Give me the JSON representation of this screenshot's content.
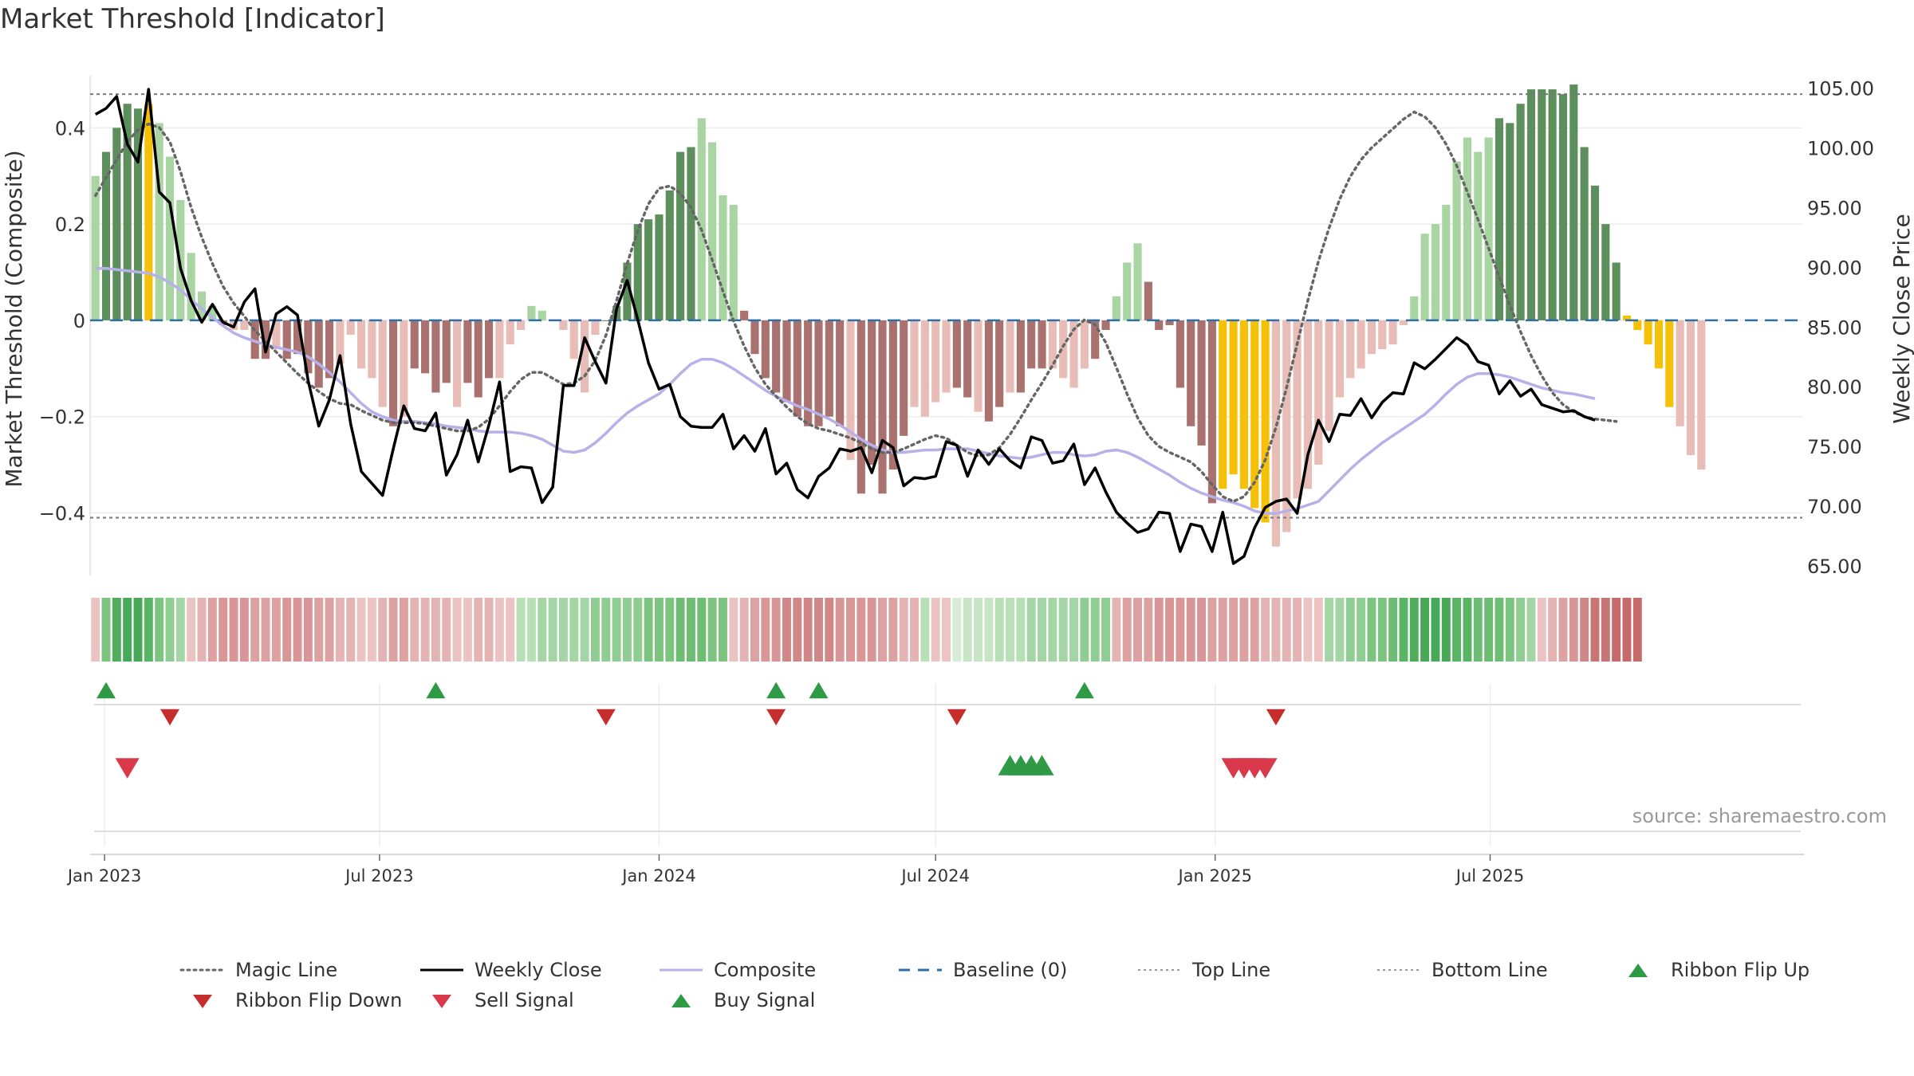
{
  "title": "Market Threshold [Indicator]",
  "source": "source: sharemaestro.com",
  "colors": {
    "dark_green": "#5c8f5c",
    "light_green": "#a8d5a2",
    "dark_red": "#a9726f",
    "light_red": "#e8bdb8",
    "gold": "#f5c108",
    "close": "#000000",
    "composite": "#b8b0e8",
    "magic": "#666666",
    "baseline": "#2e6fa8",
    "buy": "#2e9a45",
    "sell": "#d9394a",
    "flip_down": "#c62e2e"
  },
  "chart_data": {
    "type": "bar",
    "left_axis": {
      "label": "Market Threshold (Composite)",
      "ylim": [
        -0.54,
        0.5
      ],
      "ticks": [
        0.4,
        0.2,
        0,
        -0.2,
        -0.4
      ],
      "tick_labels": [
        "0.4",
        "0.2",
        "0",
        "−0.2",
        "−0.4"
      ]
    },
    "right_axis": {
      "label": "Weekly Close Price",
      "ylim": [
        63.8,
        105.7
      ],
      "ticks": [
        105,
        100,
        95,
        90,
        85,
        80,
        75,
        70,
        65
      ],
      "tick_labels": [
        "105.00",
        "100.00",
        "95.00",
        "90.00",
        "85.00",
        "80.00",
        "75.00",
        "70.00",
        "65.00"
      ]
    },
    "x_axis": {
      "start": "2022-12-26",
      "weeks": 140,
      "tick_labels": [
        "Jan 2023",
        "Jul 2023",
        "Jan 2024",
        "Jul 2024",
        "Jan 2025",
        "Jul 2025"
      ],
      "tick_dates": [
        "2023-01-01",
        "2023-07-01",
        "2024-01-01",
        "2024-07-01",
        "2025-01-01",
        "2025-07-01"
      ]
    },
    "top_line": 0.47,
    "bottom_line": -0.41,
    "baseline": 0,
    "composite_bars": [
      0.3,
      0.35,
      0.4,
      0.45,
      0.44,
      0.45,
      0.41,
      0.34,
      0.25,
      0.14,
      0.06,
      0.03,
      -0.01,
      -0.02,
      -0.02,
      -0.08,
      -0.08,
      -0.06,
      -0.08,
      -0.07,
      -0.11,
      -0.14,
      -0.12,
      -0.09,
      -0.03,
      -0.1,
      -0.12,
      -0.18,
      -0.22,
      -0.2,
      -0.1,
      -0.11,
      -0.15,
      -0.13,
      -0.18,
      -0.13,
      -0.16,
      -0.12,
      -0.12,
      -0.05,
      -0.02,
      0.03,
      0.02,
      0,
      -0.02,
      -0.08,
      -0.15,
      -0.03,
      0,
      0.03,
      0.12,
      0.2,
      0.21,
      0.22,
      0.27,
      0.35,
      0.36,
      0.42,
      0.37,
      0.26,
      0.24,
      0.02,
      -0.07,
      -0.12,
      -0.15,
      -0.17,
      -0.2,
      -0.22,
      -0.22,
      -0.2,
      -0.22,
      -0.29,
      -0.36,
      -0.3,
      -0.36,
      -0.31,
      -0.24,
      -0.18,
      -0.2,
      -0.17,
      -0.15,
      -0.14,
      -0.16,
      -0.19,
      -0.21,
      -0.18,
      -0.15,
      -0.15,
      -0.1,
      -0.1,
      -0.1,
      -0.12,
      -0.14,
      -0.1,
      -0.08,
      -0.02,
      0.05,
      0.12,
      0.16,
      0.08,
      -0.02,
      -0.01,
      -0.14,
      -0.22,
      -0.26,
      -0.38,
      -0.35,
      -0.32,
      -0.35,
      -0.39,
      -0.42,
      -0.47,
      -0.44,
      -0.37,
      -0.35,
      -0.3,
      -0.23,
      -0.16,
      -0.12,
      -0.1,
      -0.07,
      -0.06,
      -0.05,
      -0.01,
      0.05,
      0.18,
      0.2,
      0.24,
      0.33,
      0.38,
      0.35,
      0.38,
      0.42,
      0.41,
      0.45,
      0.48,
      0.48,
      0.48,
      0.47,
      0.49,
      0.36,
      0.28,
      0.2,
      0.12,
      0.01,
      -0.02,
      -0.05,
      -0.1,
      -0.18,
      -0.22,
      -0.28,
      -0.31
    ],
    "bar_types": "LDDDDGLLLLLLRLLRRLRRRRRLLLLLRLRRRRLRRRLLLLLRLLLLDDDDDDDDDLLLLRRRRRRRRRRLRRRRRLLLLRRLRRLRRRLLLLDDLLLRDDDDDDGGGGGLLLLLLLLLLLLLLLLLLLLLDDDDDDDDDDDDGGGGGLLLLLRRRRRRR",
    "weekly_close": [
      102.8,
      103.3,
      104.3,
      100.3,
      98.8,
      104.9,
      96.3,
      95.4,
      89.9,
      87.2,
      85.4,
      86.9,
      85.4,
      85,
      87.1,
      88.2,
      82.9,
      86.1,
      86.7,
      86,
      80.5,
      76.7,
      78.9,
      82.6,
      76.9,
      72.9,
      71.9,
      70.9,
      74.8,
      78.4,
      76.5,
      76.3,
      77.8,
      72.6,
      74.3,
      77.2,
      73.7,
      76.8,
      80.4,
      72.9,
      73.3,
      73.2,
      70.3,
      71.6,
      80.1,
      80.1,
      84.1,
      82.1,
      80.3,
      86.5,
      88.9,
      85.6,
      82,
      79.8,
      80.2,
      77.5,
      76.7,
      76.6,
      76.6,
      77.7,
      74.8,
      75.9,
      74.6,
      76.5,
      72.7,
      73.6,
      71.4,
      70.7,
      72.5,
      73.2,
      74.8,
      74.6,
      74.9,
      72.8,
      75.5,
      74.9,
      71.7,
      72.4,
      72.3,
      72.5,
      75.4,
      75.1,
      72.5,
      74.7,
      73.5,
      74.8,
      73.8,
      73.2,
      75.8,
      75.5,
      73.6,
      73.8,
      75.2,
      71.8,
      73.2,
      71.2,
      69.5,
      68.6,
      67.8,
      68.1,
      69.5,
      69.4,
      66.2,
      68.5,
      68.3,
      66.2,
      69.5,
      65.2,
      65.8,
      68.2,
      69.9,
      70.4,
      70.6,
      69.4,
      74.3,
      77.2,
      75.4,
      77.7,
      77.6,
      79,
      77.4,
      78.7,
      79.5,
      79.4,
      82,
      81.5,
      82.3,
      83.2,
      84.1,
      83.5,
      82.1,
      81.8,
      79.4,
      80.5,
      79.2,
      79.8,
      78.5,
      78.2,
      77.9,
      78,
      77.5,
      77.2
    ],
    "magic_line": [
      96,
      97.5,
      99,
      100.5,
      101.5,
      102,
      101.7,
      100.5,
      98,
      95,
      92.5,
      90.3,
      88.4,
      87,
      85.9,
      84.7,
      83.8,
      82.9,
      82,
      81.1,
      80.3,
      79.6,
      79,
      78.6,
      78.5,
      78,
      77.6,
      77.2,
      77,
      77,
      77,
      76.9,
      76.7,
      76.5,
      76.3,
      76.3,
      76.6,
      77.3,
      78.4,
      79.6,
      80.6,
      81.2,
      81.2,
      80.7,
      80.2,
      80.3,
      80.9,
      82.2,
      84.3,
      87.2,
      90.3,
      93.1,
      95.3,
      96.6,
      96.8,
      96.2,
      95,
      93.1,
      90.6,
      88,
      85.5,
      83.4,
      81.6,
      80.2,
      79.2,
      78.3,
      77.5,
      76.9,
      76.5,
      76.3,
      76,
      75.7,
      75.3,
      74.8,
      74.5,
      74.5,
      74.8,
      75.2,
      75.6,
      75.9,
      75.7,
      75.1,
      74.5,
      74.2,
      74.3,
      74.9,
      76,
      77.4,
      78.9,
      80.3,
      81.8,
      83.4,
      84.8,
      85.6,
      85.2,
      83.7,
      81.6,
      79.4,
      77.4,
      75.9,
      75,
      74.5,
      74.1,
      73.7,
      72.9,
      71.8,
      70.8,
      70.4,
      70.8,
      72,
      73.9,
      76.6,
      79.9,
      83.6,
      87.2,
      90.5,
      93.3,
      95.7,
      97.6,
      99,
      100,
      100.8,
      101.6,
      102.4,
      103,
      102.6,
      101.7,
      100.3,
      98.5,
      96.3,
      94,
      91.6,
      89.2,
      86.8,
      84.6,
      82.6,
      80.9,
      79.5,
      78.5,
      77.9,
      77.5,
      77.3,
      77.2,
      77.1
    ],
    "composite_line": [
      89.9,
      89.9,
      89.8,
      89.7,
      89.6,
      89.5,
      89.2,
      88.7,
      88.1,
      87.3,
      86.5,
      85.8,
      85.1,
      84.5,
      84.1,
      83.8,
      83.5,
      83.3,
      83.1,
      82.9,
      82.5,
      81.9,
      81.2,
      80.4,
      79.5,
      78.6,
      77.9,
      77.5,
      77.2,
      77.1,
      77.1,
      77,
      76.9,
      76.7,
      76.6,
      76.5,
      76.3,
      76.2,
      76.2,
      76.2,
      76.1,
      75.9,
      75.6,
      75.1,
      74.6,
      74.5,
      74.7,
      75.3,
      76.1,
      77,
      77.8,
      78.4,
      78.9,
      79.4,
      80.2,
      81.1,
      81.9,
      82.3,
      82.3,
      82,
      81.5,
      80.9,
      80.3,
      79.7,
      79.2,
      78.8,
      78.4,
      78.1,
      77.7,
      77.3,
      76.8,
      76.2,
      75.6,
      75.1,
      74.7,
      74.5,
      74.5,
      74.6,
      74.7,
      74.7,
      74.8,
      74.8,
      74.8,
      74.6,
      74.4,
      74.2,
      74.1,
      74,
      74.1,
      74.3,
      74.5,
      74.5,
      74.3,
      74.2,
      74.3,
      74.6,
      74.7,
      74.5,
      74.1,
      73.6,
      73.1,
      72.6,
      72,
      71.5,
      71.1,
      70.8,
      70.5,
      70.3,
      70,
      69.6,
      69.4,
      69.4,
      69.6,
      69.8,
      70.1,
      70.4,
      71.3,
      72.2,
      73.1,
      73.9,
      74.6,
      75.3,
      75.9,
      76.5,
      77.1,
      77.7,
      78.5,
      79.4,
      80.2,
      80.8,
      81.1,
      81.1,
      81,
      80.8,
      80.5,
      80.2,
      79.9,
      79.7,
      79.5,
      79.4,
      79.2,
      79
    ],
    "ribbon": [
      "#ecc3c3",
      "#7cc47f",
      "#4fad5c",
      "#47a857",
      "#47a857",
      "#59b466",
      "#7cc47f",
      "#8fcd92",
      "#a3d6a4",
      "#ecc3c3",
      "#e4b3b3",
      "#dca1a1",
      "#d99696",
      "#d99696",
      "#d99696",
      "#dca1a1",
      "#dca1a1",
      "#dca1a1",
      "#d99696",
      "#d99696",
      "#d99696",
      "#dca1a1",
      "#dca1a1",
      "#e4b3b3",
      "#e4b3b3",
      "#ecc3c3",
      "#ecc3c3",
      "#e4b3b3",
      "#dca1a1",
      "#dca1a1",
      "#e4b3b3",
      "#e4b3b3",
      "#e4b3b3",
      "#e4b3b3",
      "#ecc3c3",
      "#ecc3c3",
      "#e4b3b3",
      "#e4b3b3",
      "#ecc3c3",
      "#ecc3c3",
      "#b8e0b7",
      "#b8e0b7",
      "#a3d6a4",
      "#a3d6a4",
      "#a3d6a4",
      "#a3d6a4",
      "#a3d6a4",
      "#8fcd92",
      "#8fcd92",
      "#8fcd92",
      "#8fcd92",
      "#8fcd92",
      "#7cc47f",
      "#7cc47f",
      "#7cc47f",
      "#6fbd74",
      "#6fbd74",
      "#6fbd74",
      "#7cc47f",
      "#7cc47f",
      "#ecc3c3",
      "#e4b3b3",
      "#dca1a1",
      "#d99696",
      "#d99696",
      "#d08787",
      "#d08787",
      "#d08787",
      "#d08787",
      "#d08787",
      "#d99696",
      "#d99696",
      "#d99696",
      "#d99696",
      "#dca1a1",
      "#dca1a1",
      "#e4b3b3",
      "#e4b3b3",
      "#b8e0b7",
      "#ecc3c3",
      "#ecc3c3",
      "#d6ecd4",
      "#c8e6c6",
      "#c8e6c6",
      "#c8e6c6",
      "#b8e0b7",
      "#b8e0b7",
      "#b8e0b7",
      "#a3d6a4",
      "#a3d6a4",
      "#a3d6a4",
      "#a3d6a4",
      "#a3d6a4",
      "#8fcd92",
      "#8fcd92",
      "#8fcd92",
      "#e4b3b3",
      "#dca1a1",
      "#dca1a1",
      "#dca1a1",
      "#d99696",
      "#d99696",
      "#d99696",
      "#d99696",
      "#d99696",
      "#dca1a1",
      "#dca1a1",
      "#dca1a1",
      "#dca1a1",
      "#dca1a1",
      "#e4b3b3",
      "#e4b3b3",
      "#e4b3b3",
      "#e4b3b3",
      "#ecc3c3",
      "#ecc3c3",
      "#a3d6a4",
      "#a3d6a4",
      "#8fcd92",
      "#8fcd92",
      "#7cc47f",
      "#7cc47f",
      "#6fbd74",
      "#59b466",
      "#4fad5c",
      "#47a857",
      "#47a857",
      "#47a857",
      "#59b466",
      "#59b466",
      "#6fbd74",
      "#6fbd74",
      "#6fbd74",
      "#7cc47f",
      "#8fcd92",
      "#a3d6a4",
      "#ecc3c3",
      "#e4b3b3",
      "#dca1a1",
      "#d99696",
      "#d08787",
      "#c97575",
      "#c97575",
      "#c66b6b",
      "#c66b6b",
      "#c66b6b"
    ],
    "ribbon_flip_up_weeks": [
      1,
      32,
      64,
      68,
      93
    ],
    "ribbon_flip_down_weeks": [
      7,
      48,
      64,
      81,
      111
    ],
    "sell_signal_weeks": [
      3,
      107,
      108,
      109,
      110
    ],
    "buy_signal_weeks": [
      86,
      87,
      88,
      89
    ]
  },
  "legend": [
    {
      "label": "Magic Line",
      "symbol": "dotted",
      "color": "#666666"
    },
    {
      "label": "Weekly Close",
      "symbol": "solid",
      "color": "#000000"
    },
    {
      "label": "Composite",
      "symbol": "solid-thin",
      "color": "#b8b0e8"
    },
    {
      "label": "Baseline (0)",
      "symbol": "dashed",
      "color": "#2e6fa8"
    },
    {
      "label": "Top Line",
      "symbol": "dotted-light",
      "color": "#999999"
    },
    {
      "label": "Bottom Line",
      "symbol": "dotted-light",
      "color": "#999999"
    },
    {
      "label": "Ribbon Flip Up",
      "symbol": "triangle-up",
      "color": "#2e9a45"
    },
    {
      "label": "Ribbon Flip Down",
      "symbol": "triangle-down",
      "color": "#c62e2e"
    },
    {
      "label": "Sell Signal",
      "symbol": "triangle-down",
      "color": "#d9394a"
    },
    {
      "label": "Buy Signal",
      "symbol": "triangle-up",
      "color": "#2e9a45"
    }
  ]
}
